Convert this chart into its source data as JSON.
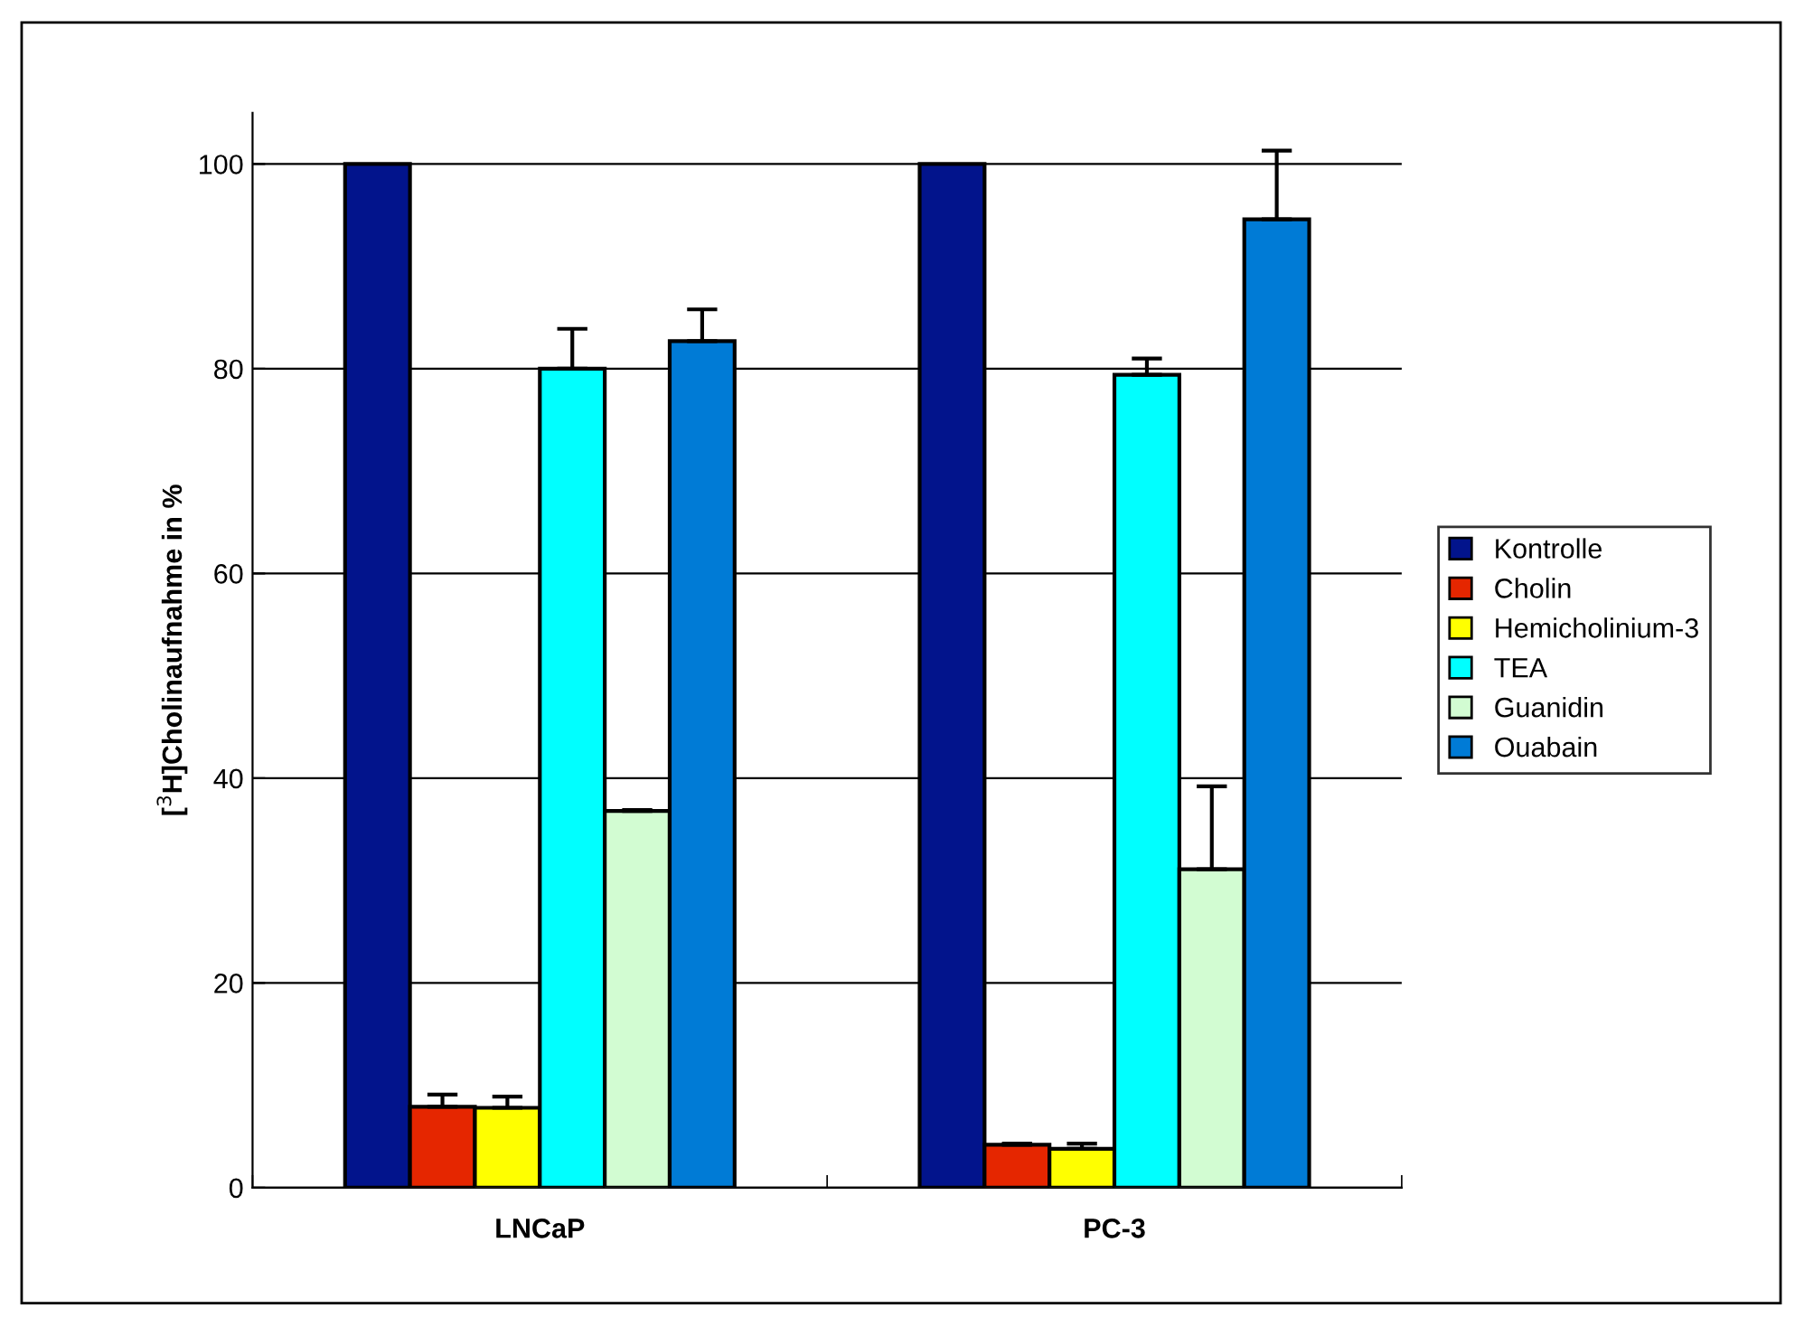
{
  "chart_data": {
    "type": "bar",
    "ylabel": "[$^{3}$H]Cholinaufnahme in %",
    "categories": [
      "LNCaP",
      "PC-3"
    ],
    "series": [
      {
        "name": "Kontrolle",
        "color": "#02148c",
        "values": [
          100,
          100
        ]
      },
      {
        "name": "Cholin",
        "color": "#e52600",
        "values": [
          7.9,
          4.2
        ],
        "errors": [
          [
            7.9,
            9.1
          ],
          [
            4.2,
            4.3
          ]
        ]
      },
      {
        "name": "Hemicholinium-3",
        "color": "#ffff00",
        "values": [
          7.8,
          3.8
        ],
        "errors": [
          [
            7.8,
            8.9
          ],
          [
            3.8,
            4.3
          ]
        ]
      },
      {
        "name": "TEA",
        "color": "#00ffff",
        "values": [
          80,
          79.4
        ],
        "errors": [
          [
            80,
            83.9
          ],
          [
            79.4,
            81.0
          ]
        ]
      },
      {
        "name": "Guanidin",
        "color": "#d2fcd2",
        "values": [
          36.8,
          31.1
        ],
        "errors": [
          [
            36.8,
            36.9
          ],
          [
            31.1,
            39.2
          ]
        ]
      },
      {
        "name": "Ouabain",
        "color": "#007bd6",
        "values": [
          82.7,
          94.6
        ],
        "errors": [
          [
            82.7,
            85.8
          ],
          [
            94.6,
            101.3
          ]
        ]
      }
    ],
    "ylim": [
      0,
      105
    ],
    "yticks": [
      0,
      20,
      40,
      60,
      80,
      100
    ],
    "grid": "y",
    "legend": "right"
  }
}
